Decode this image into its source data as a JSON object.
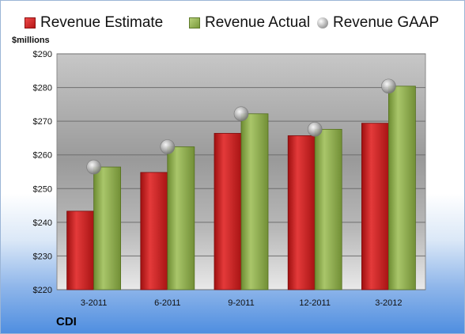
{
  "chart_data": {
    "type": "bar",
    "categories": [
      "3-2011",
      "6-2011",
      "9-2011",
      "12-2011",
      "3-2012"
    ],
    "series": [
      {
        "name": "Revenue Estimate",
        "kind": "bar",
        "color": "#c01818",
        "values": [
          243.3,
          254.8,
          266.4,
          265.7,
          269.4
        ]
      },
      {
        "name": "Revenue Actual",
        "kind": "bar",
        "color": "#8aaa48",
        "values": [
          256.4,
          262.4,
          272.2,
          267.6,
          280.4
        ]
      },
      {
        "name": "Revenue GAAP",
        "kind": "marker",
        "color": "#a8a8a8",
        "values": [
          256.4,
          262.4,
          272.2,
          267.6,
          280.4
        ]
      }
    ],
    "ylim": [
      220,
      290
    ],
    "yticks": [
      220,
      230,
      240,
      250,
      260,
      270,
      280,
      290
    ],
    "ytick_labels": [
      "$220",
      "$230",
      "$240",
      "$250",
      "$260",
      "$270",
      "$280",
      "$290"
    ],
    "ylabel": "$millions",
    "xlabel": "",
    "title": "",
    "grid": true,
    "legend_position": "top"
  },
  "legend": {
    "estimate_label": "Revenue Estimate",
    "actual_label": "Revenue Actual",
    "gaap_label": "Revenue GAAP"
  },
  "units_label": "$millions",
  "company_label": "CDI"
}
